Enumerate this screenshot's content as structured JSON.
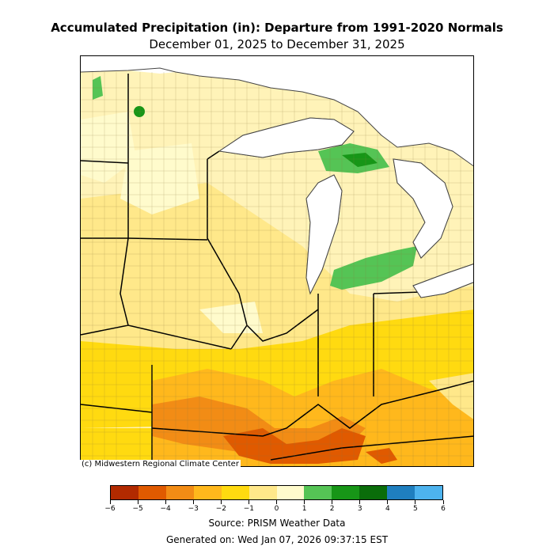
{
  "title": "Accumulated Precipitation (in): Departure from 1991-2020 Normals",
  "subtitle": "December 01, 2025 to December 31, 2025",
  "credit": "(c) Midwestern Regional Climate Center",
  "source": "Source: PRISM Weather Data",
  "generated": "Generated on: Wed Jan 07, 2026 09:37:15 EST",
  "colorbar": {
    "ticks": [
      "−6",
      "−5",
      "−4",
      "−3",
      "−2",
      "−1",
      "0",
      "1",
      "2",
      "3",
      "4",
      "5",
      "6"
    ],
    "colors": [
      "#b22a00",
      "#e05a00",
      "#f28c15",
      "#ffb81c",
      "#ffda10",
      "#ffe88a",
      "#fffbcc",
      "#55c455",
      "#179617",
      "#0a6d0a",
      "#1f7fbf",
      "#4db3ee"
    ]
  },
  "palette": {
    "lake": "#ffffff",
    "boundary": "#000000",
    "coast": "#444444"
  }
}
